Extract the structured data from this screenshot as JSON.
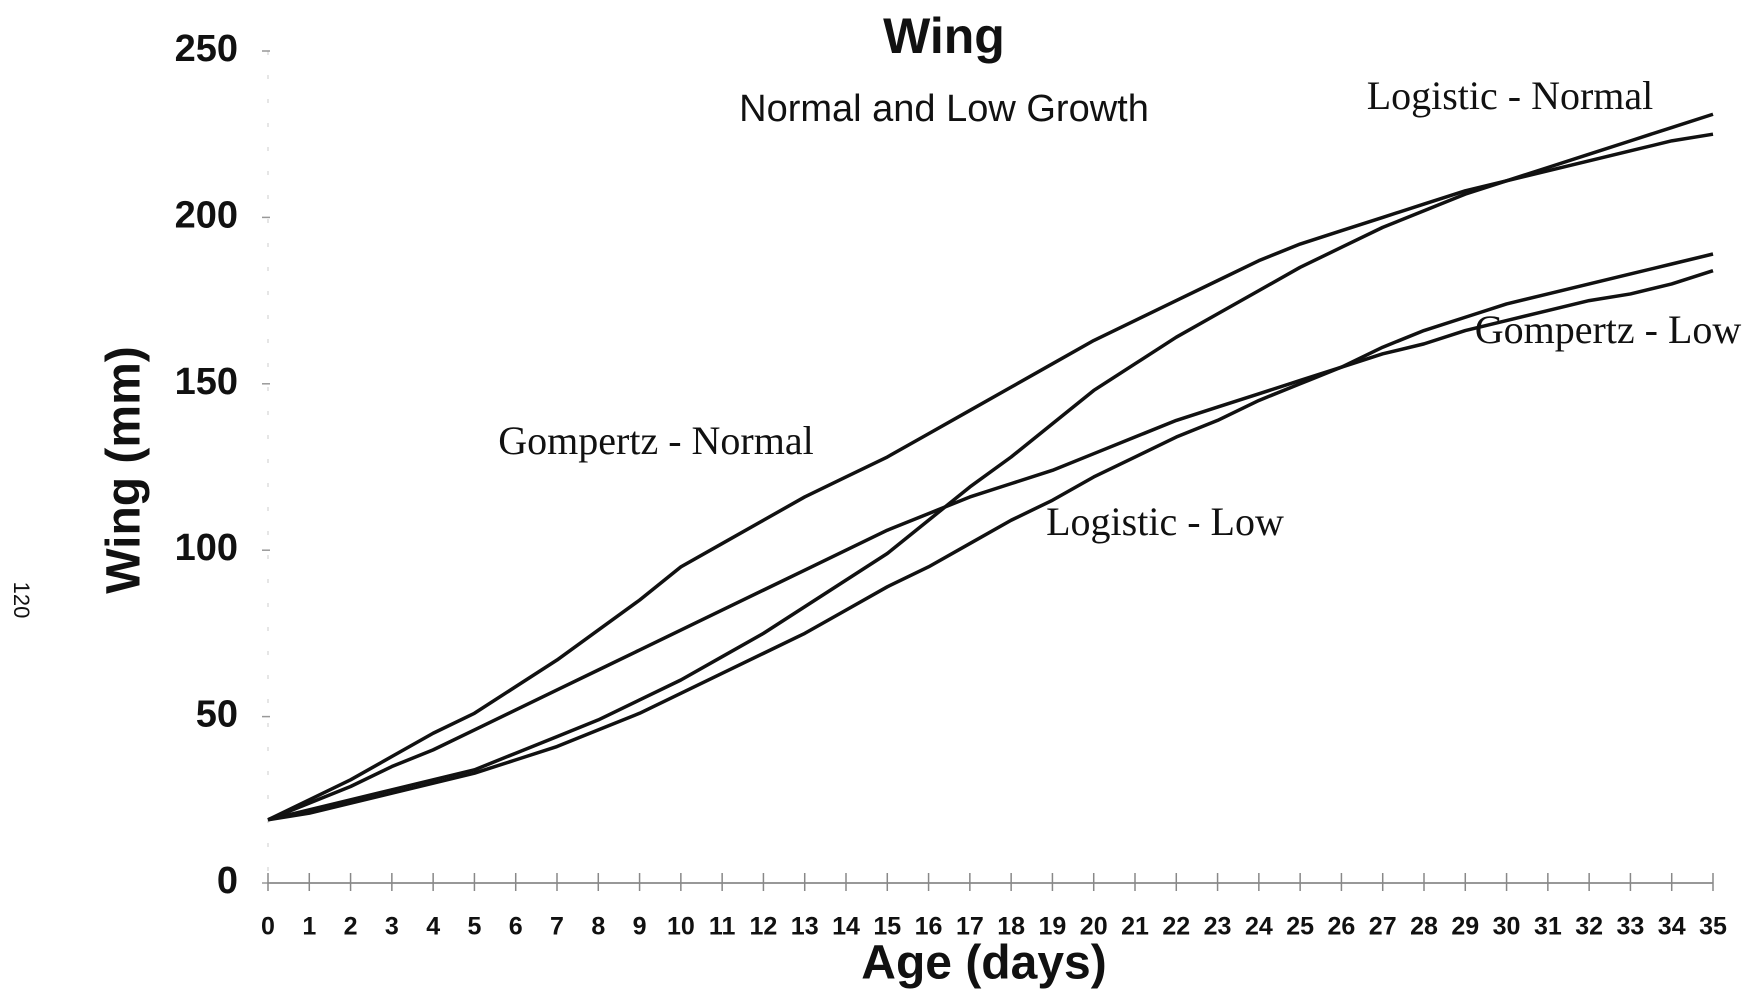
{
  "page_number": "120",
  "chart_data": {
    "type": "line",
    "title": "Wing",
    "subtitle": "Normal and Low Growth",
    "x_label": "Age (days)",
    "y_label": "Wing (mm)",
    "x": [
      0,
      1,
      2,
      3,
      4,
      5,
      6,
      7,
      8,
      9,
      10,
      11,
      12,
      13,
      14,
      15,
      16,
      17,
      18,
      19,
      20,
      21,
      22,
      23,
      24,
      25,
      26,
      27,
      28,
      29,
      30,
      31,
      32,
      33,
      34,
      35
    ],
    "xlim": [
      0,
      35
    ],
    "xticks": [
      0,
      1,
      2,
      3,
      4,
      5,
      6,
      7,
      8,
      9,
      10,
      11,
      12,
      13,
      14,
      15,
      16,
      17,
      18,
      19,
      20,
      21,
      22,
      23,
      24,
      25,
      26,
      27,
      28,
      29,
      30,
      31,
      32,
      33,
      34,
      35
    ],
    "ylim": [
      0,
      250
    ],
    "yticks": [
      0,
      50,
      100,
      150,
      200,
      250
    ],
    "series": [
      {
        "name": "Gompertz - Normal",
        "color": "#111111",
        "values": [
          19,
          25,
          31,
          38,
          45,
          51,
          59,
          67,
          76,
          85,
          95,
          102,
          109,
          116,
          122,
          128,
          135,
          142,
          149,
          156,
          163,
          169,
          175,
          181,
          187,
          192,
          196,
          200,
          204,
          208,
          211,
          214,
          217,
          220,
          223,
          225
        ]
      },
      {
        "name": "Logistic - Normal",
        "color": "#111111",
        "values": [
          19,
          22,
          25,
          28,
          31,
          34,
          39,
          44,
          49,
          55,
          61,
          68,
          75,
          83,
          91,
          99,
          109,
          119,
          128,
          138,
          148,
          156,
          164,
          171,
          178,
          185,
          191,
          197,
          202,
          207,
          211,
          215,
          219,
          223,
          227,
          231
        ]
      },
      {
        "name": "Gompertz - Low",
        "color": "#111111",
        "values": [
          19,
          24,
          29,
          35,
          40,
          46,
          52,
          58,
          64,
          70,
          76,
          82,
          88,
          94,
          100,
          106,
          111,
          116,
          120,
          124,
          129,
          134,
          139,
          143,
          147,
          151,
          155,
          159,
          162,
          166,
          169,
          172,
          175,
          177,
          180,
          184
        ]
      },
      {
        "name": "Logistic - Low",
        "color": "#111111",
        "values": [
          19,
          21,
          24,
          27,
          30,
          33,
          37,
          41,
          46,
          51,
          57,
          63,
          69,
          75,
          82,
          89,
          95,
          102,
          109,
          115,
          122,
          128,
          134,
          139,
          145,
          150,
          155,
          161,
          166,
          170,
          174,
          177,
          180,
          183,
          186,
          189
        ]
      }
    ]
  }
}
